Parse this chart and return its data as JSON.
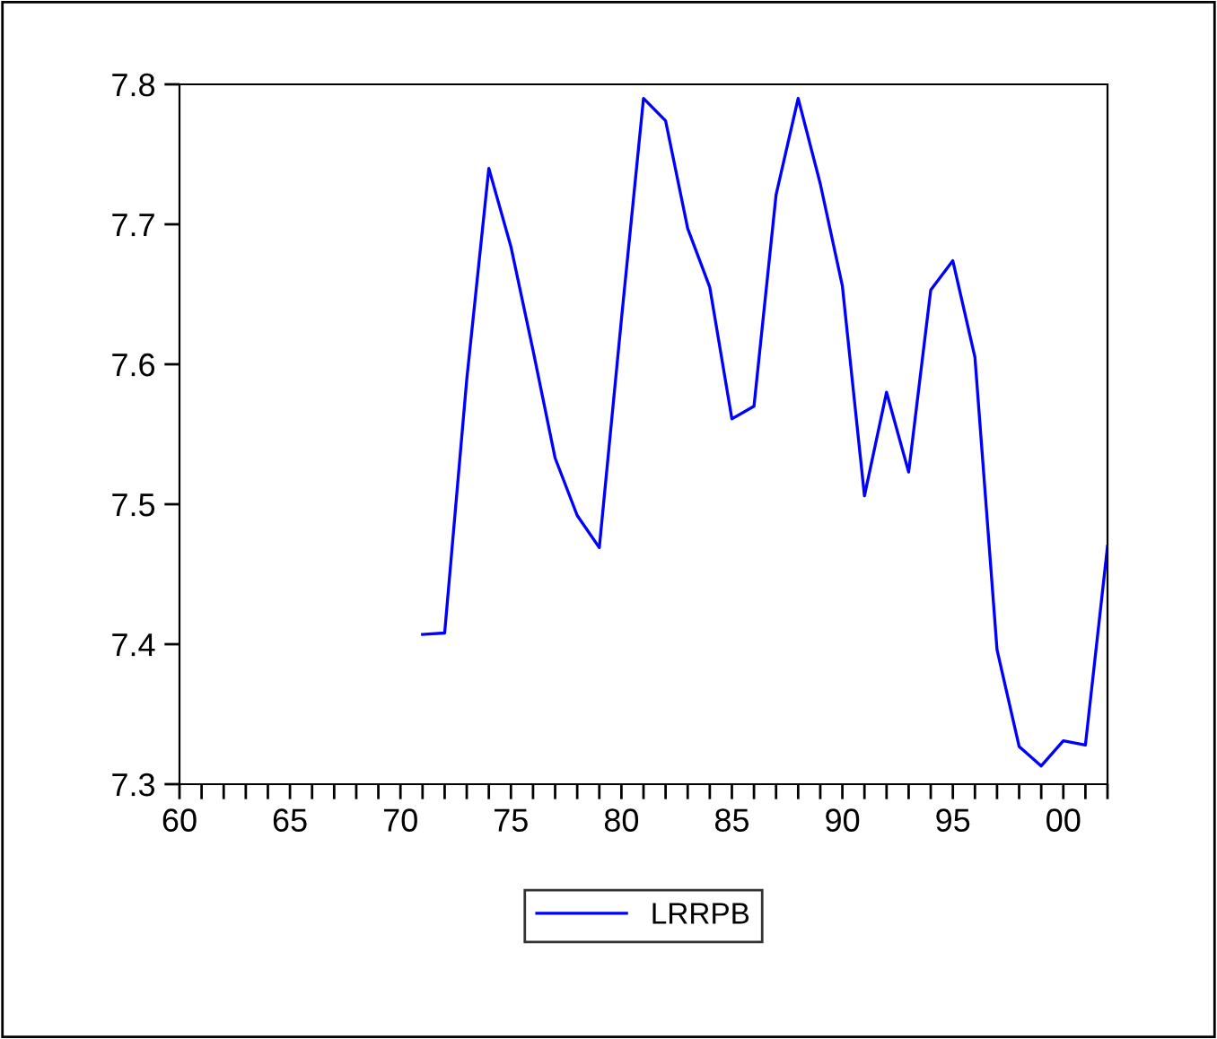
{
  "chart_data": {
    "type": "line",
    "x": [
      1971,
      1972,
      1973,
      1974,
      1975,
      1976,
      1977,
      1978,
      1979,
      1980,
      1981,
      1982,
      1983,
      1984,
      1985,
      1986,
      1987,
      1988,
      1989,
      1990,
      1991,
      1992,
      1993,
      1994,
      1995,
      1996,
      1997,
      1998,
      1999,
      2000,
      2001,
      2002
    ],
    "series": [
      {
        "name": "LRRPB",
        "color": "#0000ff",
        "values": [
          7.407,
          7.408,
          7.589,
          7.74,
          7.684,
          7.61,
          7.533,
          7.492,
          7.469,
          7.632,
          7.79,
          7.774,
          7.697,
          7.655,
          7.561,
          7.57,
          7.721,
          7.79,
          7.729,
          7.656,
          7.506,
          7.58,
          7.523,
          7.653,
          7.674,
          7.605,
          7.396,
          7.327,
          7.313,
          7.331,
          7.328,
          7.47
        ]
      }
    ],
    "xlim": [
      1960,
      2002
    ],
    "xticks": [
      {
        "value": 1960,
        "label": "60"
      },
      {
        "value": 1961,
        "label": null
      },
      {
        "value": 1962,
        "label": null
      },
      {
        "value": 1963,
        "label": null
      },
      {
        "value": 1964,
        "label": null
      },
      {
        "value": 1965,
        "label": "65"
      },
      {
        "value": 1966,
        "label": null
      },
      {
        "value": 1967,
        "label": null
      },
      {
        "value": 1968,
        "label": null
      },
      {
        "value": 1969,
        "label": null
      },
      {
        "value": 1970,
        "label": "70"
      },
      {
        "value": 1971,
        "label": null
      },
      {
        "value": 1972,
        "label": null
      },
      {
        "value": 1973,
        "label": null
      },
      {
        "value": 1974,
        "label": null
      },
      {
        "value": 1975,
        "label": "75"
      },
      {
        "value": 1976,
        "label": null
      },
      {
        "value": 1977,
        "label": null
      },
      {
        "value": 1978,
        "label": null
      },
      {
        "value": 1979,
        "label": null
      },
      {
        "value": 1980,
        "label": "80"
      },
      {
        "value": 1981,
        "label": null
      },
      {
        "value": 1982,
        "label": null
      },
      {
        "value": 1983,
        "label": null
      },
      {
        "value": 1984,
        "label": null
      },
      {
        "value": 1985,
        "label": "85"
      },
      {
        "value": 1986,
        "label": null
      },
      {
        "value": 1987,
        "label": null
      },
      {
        "value": 1988,
        "label": null
      },
      {
        "value": 1989,
        "label": null
      },
      {
        "value": 1990,
        "label": "90"
      },
      {
        "value": 1991,
        "label": null
      },
      {
        "value": 1992,
        "label": null
      },
      {
        "value": 1993,
        "label": null
      },
      {
        "value": 1994,
        "label": null
      },
      {
        "value": 1995,
        "label": "95"
      },
      {
        "value": 1996,
        "label": null
      },
      {
        "value": 1997,
        "label": null
      },
      {
        "value": 1998,
        "label": null
      },
      {
        "value": 1999,
        "label": null
      },
      {
        "value": 2000,
        "label": "00"
      },
      {
        "value": 2001,
        "label": null
      },
      {
        "value": 2002,
        "label": null
      }
    ],
    "ylim": [
      7.3,
      7.8
    ],
    "yticks": [
      7.3,
      7.4,
      7.5,
      7.6,
      7.7,
      7.8
    ],
    "grid": false,
    "legend": "bottom",
    "marker": "none",
    "line_style": "solid"
  }
}
